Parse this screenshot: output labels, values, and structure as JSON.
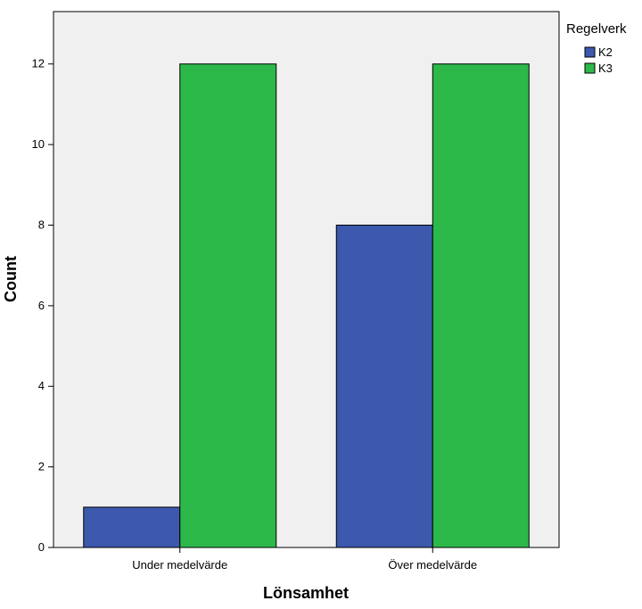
{
  "chart_data": {
    "type": "bar",
    "categories": [
      "Under medelvärde",
      "Över medelvärde"
    ],
    "series": [
      {
        "name": "K2",
        "values": [
          1,
          8
        ],
        "color": "#3c59ad"
      },
      {
        "name": "K3",
        "values": [
          12,
          12
        ],
        "color": "#2db84a"
      }
    ],
    "xlabel": "Lönsamhet",
    "ylabel": "Count",
    "ylim": [
      0,
      13.3
    ],
    "yticks": [
      0,
      2,
      4,
      6,
      8,
      10,
      12
    ],
    "legend": {
      "title": "Regelverk",
      "position": "top-right"
    },
    "grid": false,
    "plot_background": "#f0f0f0"
  }
}
